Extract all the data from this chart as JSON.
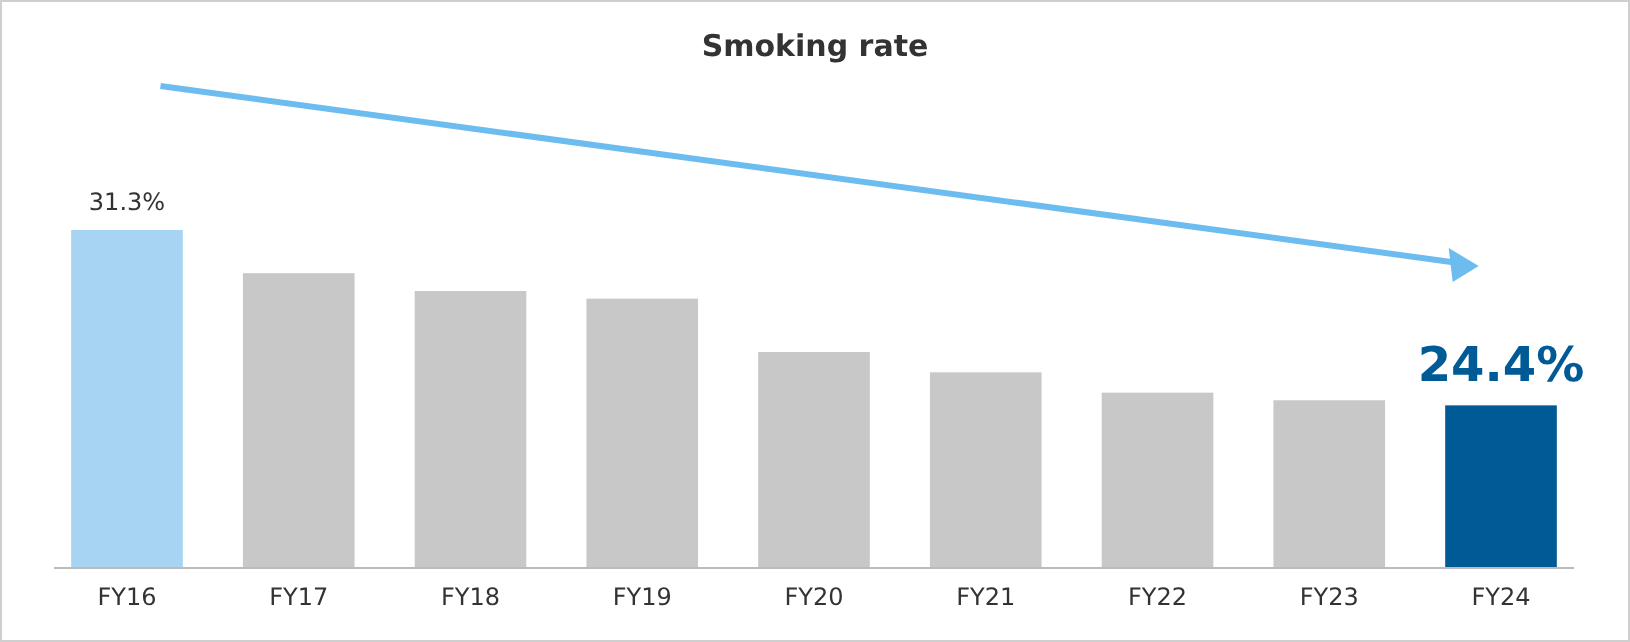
{
  "chart_data": {
    "type": "bar",
    "title": "Smoking rate",
    "categories": [
      "FY16",
      "FY17",
      "FY18",
      "FY19",
      "FY20",
      "FY21",
      "FY22",
      "FY23",
      "FY24"
    ],
    "values": [
      31.3,
      29.6,
      28.9,
      28.6,
      26.5,
      25.7,
      24.9,
      24.6,
      24.4
    ],
    "colors": [
      "#a6d4f2",
      "#c8c8c8",
      "#c8c8c8",
      "#c8c8c8",
      "#c8c8c8",
      "#c8c8c8",
      "#c8c8c8",
      "#c8c8c8",
      "#005a96"
    ],
    "value_labels": [
      "31.3%",
      null,
      null,
      null,
      null,
      null,
      null,
      null,
      "24.4%"
    ],
    "ylim": [
      18,
      31.3
    ],
    "tick_labels": "x"
  }
}
